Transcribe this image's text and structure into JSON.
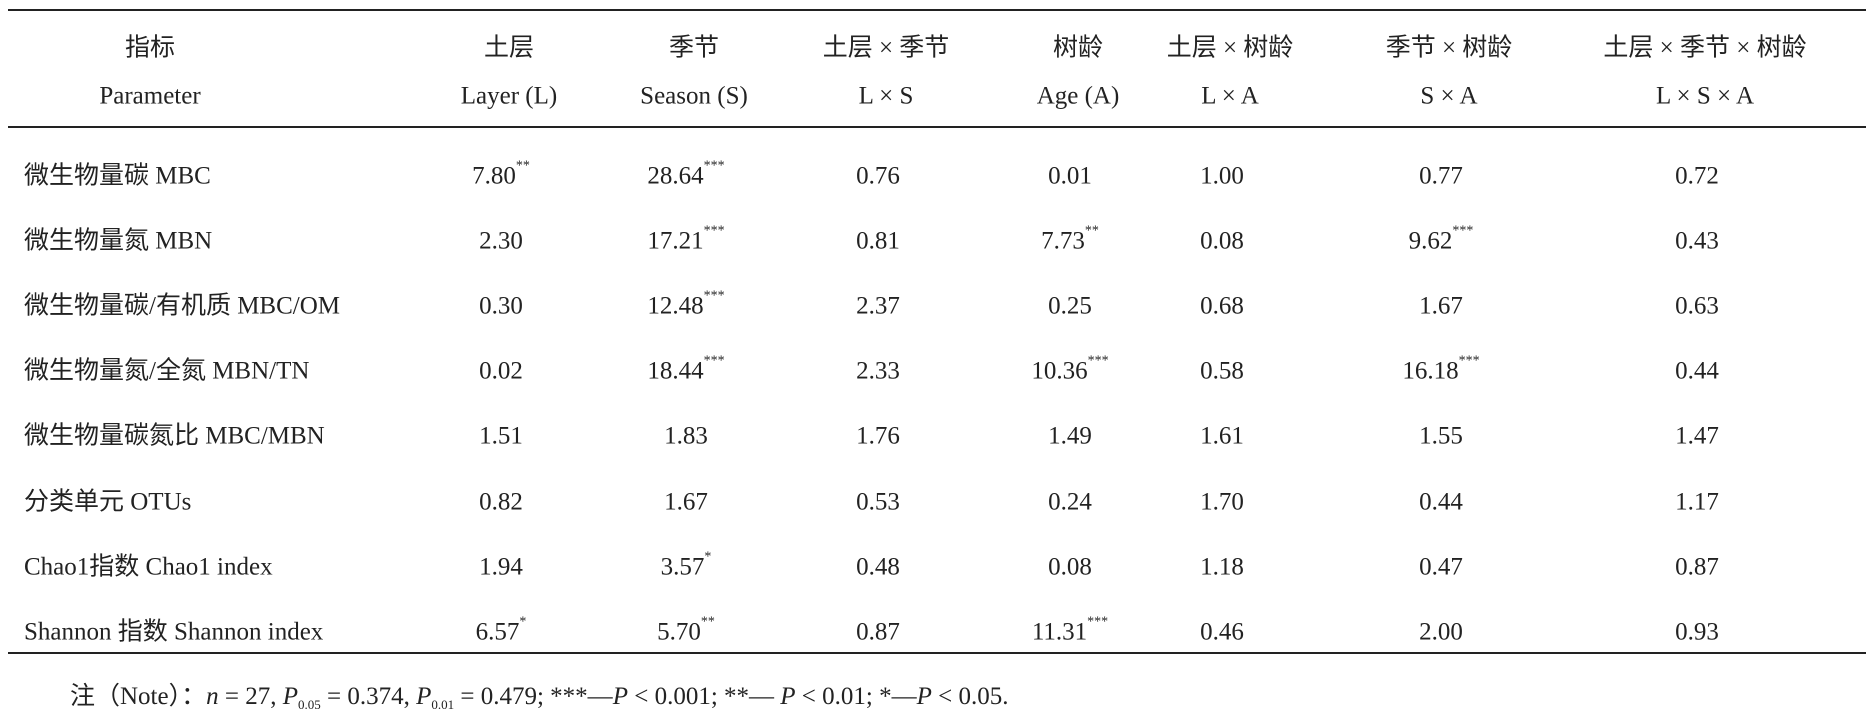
{
  "table": {
    "header": [
      [
        "指标",
        "Parameter"
      ],
      [
        "土层",
        "Layer (L)"
      ],
      [
        "季节",
        "Season (S)"
      ],
      [
        "土层 × 季节",
        "L × S"
      ],
      [
        "树龄",
        "Age (A)"
      ],
      [
        "土层 × 树龄",
        "L × A"
      ],
      [
        "季节 × 树龄",
        "S × A"
      ],
      [
        "土层 × 季节 × 树龄",
        "L × S × A"
      ]
    ],
    "rows": [
      {
        "label": "微生物量碳 MBC",
        "cells": [
          {
            "value": "7.80",
            "sig": "**"
          },
          {
            "value": "28.64",
            "sig": "***"
          },
          {
            "value": "0.76"
          },
          {
            "value": "0.01"
          },
          {
            "value": "1.00"
          },
          {
            "value": "0.77"
          },
          {
            "value": "0.72"
          }
        ]
      },
      {
        "label": "微生物量氮 MBN",
        "cells": [
          {
            "value": "2.30"
          },
          {
            "value": "17.21",
            "sig": "***"
          },
          {
            "value": "0.81"
          },
          {
            "value": "7.73",
            "sig": "**"
          },
          {
            "value": "0.08"
          },
          {
            "value": "9.62",
            "sig": "***"
          },
          {
            "value": "0.43"
          }
        ]
      },
      {
        "label": "微生物量碳/有机质 MBC/OM",
        "cells": [
          {
            "value": "0.30"
          },
          {
            "value": "12.48",
            "sig": "***"
          },
          {
            "value": "2.37"
          },
          {
            "value": "0.25"
          },
          {
            "value": "0.68"
          },
          {
            "value": "1.67"
          },
          {
            "value": "0.63"
          }
        ]
      },
      {
        "label": "微生物量氮/全氮 MBN/TN",
        "cells": [
          {
            "value": "0.02"
          },
          {
            "value": "18.44",
            "sig": "***"
          },
          {
            "value": "2.33"
          },
          {
            "value": "10.36",
            "sig": "***"
          },
          {
            "value": "0.58"
          },
          {
            "value": "16.18",
            "sig": "***"
          },
          {
            "value": "0.44"
          }
        ]
      },
      {
        "label": "微生物量碳氮比 MBC/MBN",
        "cells": [
          {
            "value": "1.51"
          },
          {
            "value": "1.83"
          },
          {
            "value": "1.76"
          },
          {
            "value": "1.49"
          },
          {
            "value": "1.61"
          },
          {
            "value": "1.55"
          },
          {
            "value": "1.47"
          }
        ]
      },
      {
        "label": "分类单元 OTUs",
        "cells": [
          {
            "value": "0.82"
          },
          {
            "value": "1.67"
          },
          {
            "value": "0.53"
          },
          {
            "value": "0.24"
          },
          {
            "value": "1.70"
          },
          {
            "value": "0.44"
          },
          {
            "value": "1.17"
          }
        ]
      },
      {
        "label": "Chao1指数 Chao1 index",
        "cells": [
          {
            "value": "1.94"
          },
          {
            "value": "3.57",
            "sig": "*"
          },
          {
            "value": "0.48"
          },
          {
            "value": "0.08"
          },
          {
            "value": "1.18"
          },
          {
            "value": "0.47"
          },
          {
            "value": "0.87"
          }
        ]
      },
      {
        "label": "Shannon 指数 Shannon index",
        "cells": [
          {
            "value": "6.57",
            "sig": "*"
          },
          {
            "value": "5.70",
            "sig": "**"
          },
          {
            "value": "0.87"
          },
          {
            "value": "11.31",
            "sig": "***"
          },
          {
            "value": "0.46"
          },
          {
            "value": "2.00"
          },
          {
            "value": "0.93"
          }
        ]
      }
    ]
  },
  "note": {
    "prefix": "注（Note）：",
    "n": "n",
    "n_val": " = 27, ",
    "p1": "P",
    "p1_sub": "0.05",
    "p1_val": " = 0.374, ",
    "p2": "P",
    "p2_sub": "0.01",
    "p2_val": " = 0.479; ***—",
    "p3": "P",
    "p3_val": " < 0.001; **— ",
    "p4": "P",
    "p4_val": " < 0.01; *—",
    "p5": "P",
    "p5_val": " < 0.05."
  }
}
